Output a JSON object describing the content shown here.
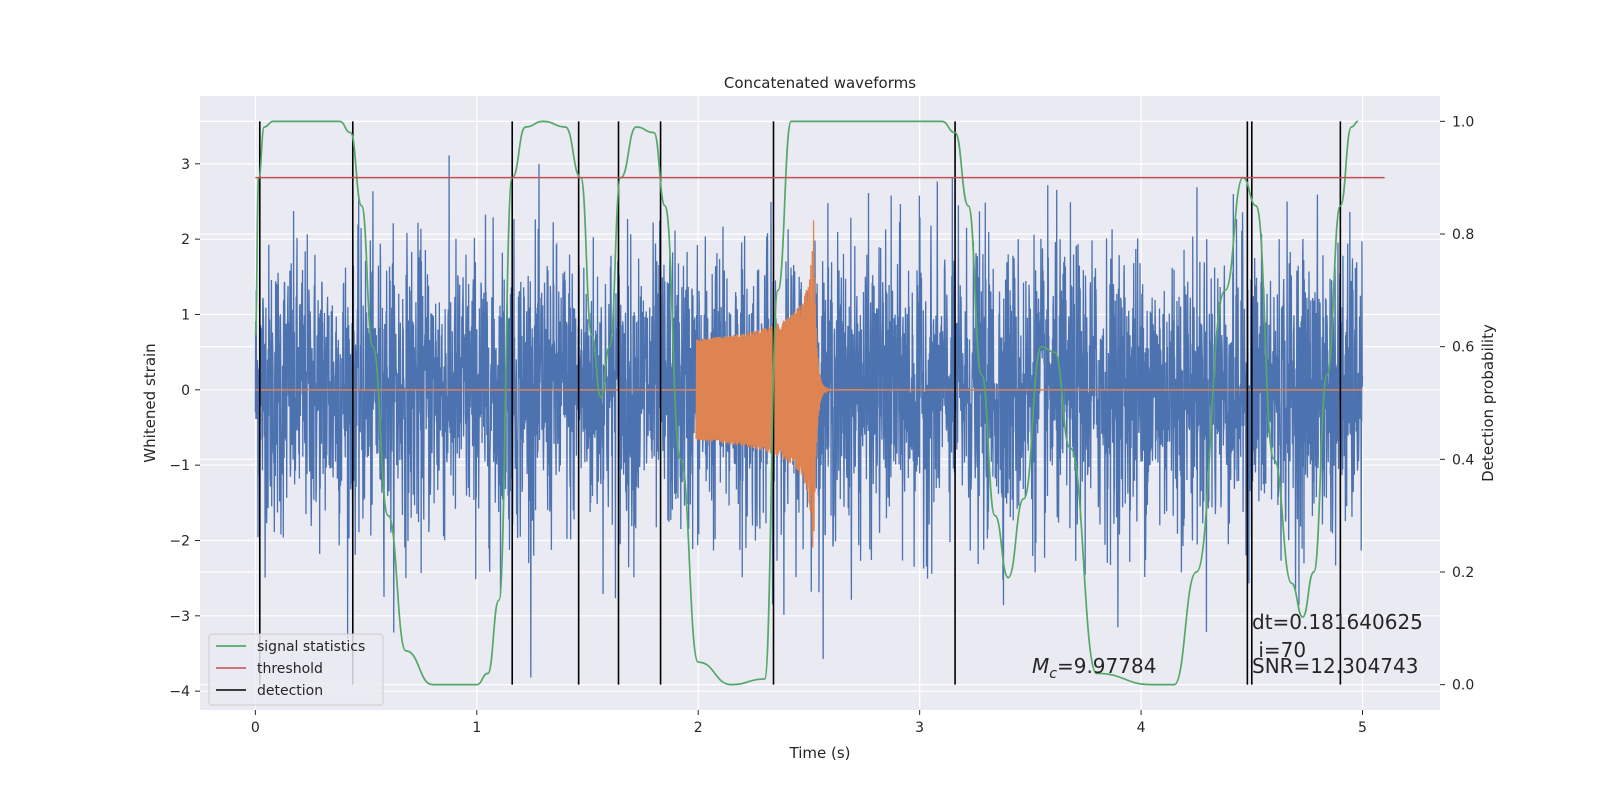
{
  "chart_data": {
    "type": "line",
    "title": "Concatenated waveforms",
    "xlabel": "Time (s)",
    "ylabel": "Whitened strain",
    "y2label": "Detection probability",
    "xlim": [
      -0.25,
      5.35
    ],
    "ylim": [
      -4.25,
      3.9
    ],
    "y2lim": [
      -0.045,
      1.045
    ],
    "x_ticks": [
      0,
      1,
      2,
      3,
      4,
      5
    ],
    "y_ticks": [
      -4,
      -3,
      -2,
      -1,
      0,
      1,
      2,
      3
    ],
    "y2_ticks": [
      0.0,
      0.2,
      0.4,
      0.6,
      0.8,
      1.0
    ],
    "y2_tick_labels": [
      "0.0",
      "0.2",
      "0.4",
      "0.6",
      "0.8",
      "1.0"
    ],
    "grid": true,
    "legend_position": "lower-left",
    "colors": {
      "strain": "#4c72b0",
      "injection": "#dd8452",
      "signal": "#55a868",
      "threshold": "#c44e52",
      "detection": "#000000",
      "axes_bg": "#eaeaf2",
      "grid": "#ffffff"
    },
    "strain_noise": {
      "x_start": 0,
      "x_end": 5,
      "typical_amplitude": 1.0,
      "peak_values": [
        3.55,
        -4.05
      ]
    },
    "injection": {
      "x_start": 1.99,
      "merger_time": 2.52,
      "ringdown_end": 2.75,
      "peak_amplitude": 2.45,
      "baseline": 0
    },
    "series": [
      {
        "name": "signal statistics",
        "axis": "right",
        "x": [
          0.0,
          0.015,
          0.04,
          0.08,
          0.2,
          0.38,
          0.43,
          0.48,
          0.53,
          0.6,
          0.68,
          0.8,
          1.0,
          1.05,
          1.1,
          1.16,
          1.22,
          1.3,
          1.4,
          1.47,
          1.52,
          1.56,
          1.6,
          1.65,
          1.72,
          1.8,
          1.85,
          1.92,
          2.0,
          2.15,
          2.3,
          2.36,
          2.42,
          2.6,
          3.1,
          3.16,
          3.22,
          3.28,
          3.34,
          3.4,
          3.47,
          3.55,
          3.61,
          3.68,
          3.8,
          4.05,
          4.15,
          4.25,
          4.38,
          4.46,
          4.52,
          4.6,
          4.68,
          4.73,
          4.78,
          4.84,
          4.9,
          4.95,
          4.98
        ],
        "y": [
          0.62,
          0.9,
          0.99,
          1.0,
          1.0,
          1.0,
          0.98,
          0.85,
          0.6,
          0.3,
          0.06,
          0.0,
          0.0,
          0.02,
          0.15,
          0.9,
          0.99,
          1.0,
          0.99,
          0.9,
          0.62,
          0.51,
          0.6,
          0.9,
          0.99,
          0.98,
          0.85,
          0.4,
          0.04,
          0.0,
          0.01,
          0.7,
          1.0,
          1.0,
          1.0,
          0.98,
          0.85,
          0.55,
          0.3,
          0.19,
          0.33,
          0.6,
          0.59,
          0.42,
          0.02,
          0.0,
          0.0,
          0.2,
          0.7,
          0.9,
          0.85,
          0.4,
          0.18,
          0.12,
          0.2,
          0.55,
          0.85,
          0.99,
          1.0
        ]
      },
      {
        "name": "threshold",
        "axis": "right",
        "x": [
          0.0,
          5.1
        ],
        "y": [
          0.9,
          0.9
        ]
      }
    ],
    "detections": {
      "name": "detection",
      "x": [
        0.02,
        0.44,
        1.16,
        1.46,
        1.64,
        1.83,
        2.34,
        3.16,
        4.48,
        4.5,
        4.9
      ],
      "y2_range": [
        0.0,
        1.0
      ]
    },
    "annotations": [
      {
        "id": "dt",
        "text": "dt=0.181640625",
        "x": 4.5,
        "y2": 0.1
      },
      {
        "id": "i",
        "text": " i=70",
        "x": 4.5,
        "y2": 0.055
      },
      {
        "id": "snr",
        "text": "SNR=12.304743",
        "x": 4.5,
        "y2": 0.015
      },
      {
        "id": "mc",
        "text_symbol": "M",
        "text_sub": "c",
        "text_value": "=9.97784",
        "x": 3.5,
        "y2": 0.015
      }
    ]
  }
}
